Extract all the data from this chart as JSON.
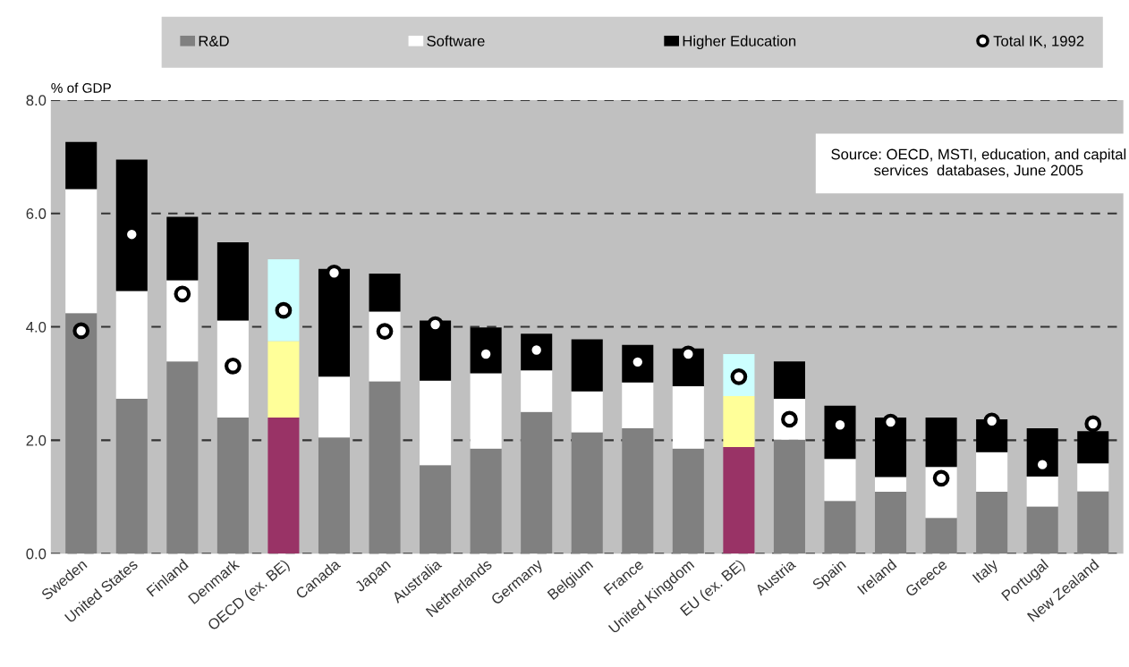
{
  "chart_data": {
    "type": "bar",
    "stacked": true,
    "ylabel": "% of GDP",
    "categories": [
      "Sweden",
      "United States",
      "Finland",
      "Denmark",
      "OECD (ex. BE)",
      "Canada",
      "Japan",
      "Australia",
      "Netherlands",
      "Germany",
      "Belgium",
      "France",
      "United Kingdom",
      "EU (ex. BE)",
      "Austria",
      "Spain",
      "Ireland",
      "Greece",
      "Italy",
      "Portugal",
      "New Zealand"
    ],
    "series": [
      {
        "name": "R&D",
        "color": "#808080",
        "colors": [
          "#808080",
          "#808080",
          "#808080",
          "#808080",
          "#993366",
          "#808080",
          "#808080",
          "#808080",
          "#808080",
          "#808080",
          "#808080",
          "#808080",
          "#808080",
          "#993366",
          "#808080",
          "#808080",
          "#808080",
          "#808080",
          "#808080",
          "#808080",
          "#808080"
        ],
        "values": [
          4.24,
          2.73,
          3.39,
          2.4,
          2.4,
          2.05,
          3.04,
          1.56,
          1.85,
          2.5,
          2.14,
          2.21,
          1.85,
          1.88,
          2.01,
          0.93,
          1.09,
          0.63,
          1.09,
          0.83,
          1.1
        ]
      },
      {
        "name": "Software",
        "color": "#ffffff",
        "colors": [
          "#ffffff",
          "#ffffff",
          "#ffffff",
          "#ffffff",
          "#ffff99",
          "#ffffff",
          "#ffffff",
          "#ffffff",
          "#ffffff",
          "#ffffff",
          "#ffffff",
          "#ffffff",
          "#ffffff",
          "#ffff99",
          "#ffffff",
          "#ffffff",
          "#ffffff",
          "#ffffff",
          "#ffffff",
          "#ffffff",
          "#ffffff"
        ],
        "values": [
          2.19,
          1.9,
          1.43,
          1.71,
          1.35,
          1.07,
          1.23,
          1.49,
          1.33,
          0.73,
          0.72,
          0.81,
          1.1,
          0.9,
          0.72,
          0.74,
          0.26,
          0.9,
          0.7,
          0.53,
          0.49
        ]
      },
      {
        "name": "Higher Education",
        "color": "#000000",
        "colors": [
          "#000000",
          "#000000",
          "#000000",
          "#000000",
          "#ccffff",
          "#000000",
          "#000000",
          "#000000",
          "#000000",
          "#000000",
          "#000000",
          "#000000",
          "#000000",
          "#ccffff",
          "#000000",
          "#000000",
          "#000000",
          "#000000",
          "#000000",
          "#000000",
          "#000000"
        ],
        "values": [
          0.83,
          2.32,
          1.12,
          1.38,
          1.44,
          1.9,
          0.67,
          1.06,
          0.81,
          0.65,
          0.92,
          0.66,
          0.67,
          0.74,
          0.66,
          0.94,
          1.05,
          0.87,
          0.58,
          0.85,
          0.57
        ]
      },
      {
        "name": "Total IK, 1992",
        "type": "scatter",
        "marker": "circle",
        "color": "#000000",
        "values": [
          3.93,
          5.63,
          4.58,
          3.31,
          4.29,
          4.95,
          3.92,
          4.04,
          3.52,
          3.59,
          null,
          3.38,
          3.52,
          3.12,
          2.37,
          2.27,
          2.32,
          1.33,
          2.34,
          1.57,
          2.29
        ]
      }
    ],
    "ylim": [
      0,
      8.0
    ],
    "yticks": [
      {
        "value": 0,
        "label": "0.0"
      },
      {
        "value": 2,
        "label": "2.0"
      },
      {
        "value": 4,
        "label": "4.0"
      },
      {
        "value": 6,
        "label": "6.0"
      },
      {
        "value": 8,
        "label": "8.0"
      }
    ],
    "grid": "y",
    "line_style": "dashed",
    "legend": "top",
    "annotations": [
      "Source: OECD, MSTI, education, and capital services  databases, June 2005"
    ]
  }
}
